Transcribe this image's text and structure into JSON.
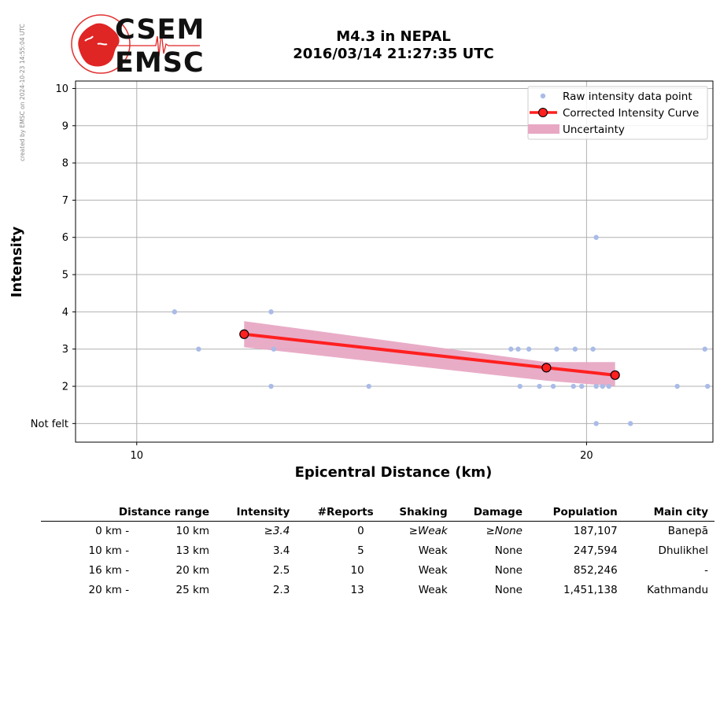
{
  "credit": "created by EMSC on 2024-10-23 14:55:04 UTC",
  "logo": {
    "line1": "CSEM",
    "line2": "EMSC"
  },
  "title": {
    "line1": "M4.3 in NEPAL",
    "line2": "2016/03/14 21:27:35 UTC"
  },
  "colors": {
    "raw": "#aabbe8",
    "curve": "#ff2020",
    "band": "#e8a8c4",
    "grid": "#b0b0b0"
  },
  "chart_data": {
    "type": "scatter",
    "xlabel": "Epicentral Distance (km)",
    "ylabel": "Intensity",
    "xlim": [
      9.1,
      24.3
    ],
    "ylim": [
      0.5,
      10.2
    ],
    "x_scale": "log",
    "grid": true,
    "x_ticks": [
      10,
      20
    ],
    "y_ticks": [
      {
        "value": 1,
        "label": "Not felt"
      },
      {
        "value": 2,
        "label": "2"
      },
      {
        "value": 3,
        "label": "3"
      },
      {
        "value": 4,
        "label": "4"
      },
      {
        "value": 5,
        "label": "5"
      },
      {
        "value": 6,
        "label": "6"
      },
      {
        "value": 7,
        "label": "7"
      },
      {
        "value": 8,
        "label": "8"
      },
      {
        "value": 9,
        "label": "9"
      },
      {
        "value": 10,
        "label": "10"
      }
    ],
    "legend_position": "top-right",
    "legend": [
      "Raw intensity data point",
      "Corrected Intensity Curve",
      "Uncertainty"
    ],
    "series": [
      {
        "name": "Raw intensity data point",
        "kind": "points",
        "points": [
          [
            10.6,
            4
          ],
          [
            11.0,
            3
          ],
          [
            12.3,
            4
          ],
          [
            12.35,
            3
          ],
          [
            12.3,
            2
          ],
          [
            14.3,
            2
          ],
          [
            17.8,
            3
          ],
          [
            18.0,
            3
          ],
          [
            18.05,
            2
          ],
          [
            18.3,
            3
          ],
          [
            18.6,
            2
          ],
          [
            19.0,
            2
          ],
          [
            19.1,
            3
          ],
          [
            19.6,
            2
          ],
          [
            19.65,
            3
          ],
          [
            19.85,
            2
          ],
          [
            20.2,
            3
          ],
          [
            20.3,
            2
          ],
          [
            20.3,
            6
          ],
          [
            20.3,
            1
          ],
          [
            20.5,
            2
          ],
          [
            20.7,
            2
          ],
          [
            21.4,
            1
          ],
          [
            23.0,
            2
          ],
          [
            24.0,
            3
          ],
          [
            24.1,
            2
          ]
        ]
      },
      {
        "name": "Corrected Intensity Curve",
        "kind": "line",
        "points": [
          [
            11.8,
            3.4
          ],
          [
            18.8,
            2.5
          ],
          [
            20.9,
            2.3
          ]
        ]
      },
      {
        "name": "Uncertainty",
        "kind": "band",
        "upper": [
          [
            11.8,
            3.75
          ],
          [
            18.8,
            2.65
          ],
          [
            20.9,
            2.65
          ]
        ],
        "lower": [
          [
            11.8,
            3.05
          ],
          [
            18.8,
            2.15
          ],
          [
            20.9,
            2.0
          ]
        ]
      }
    ]
  },
  "table": {
    "headers": [
      "Distance range",
      "Intensity",
      "#Reports",
      "Shaking",
      "Damage",
      "Population",
      "Main city"
    ],
    "rows": [
      {
        "range_from": "0 km -",
        "range_to": "10 km",
        "intensity": "≥3.4",
        "reports": "0",
        "shaking": "≥Weak",
        "damage": "≥None",
        "population": "187,107",
        "city": "Banepā"
      },
      {
        "range_from": "10 km -",
        "range_to": "13 km",
        "intensity": "3.4",
        "reports": "5",
        "shaking": "Weak",
        "damage": "None",
        "population": "247,594",
        "city": "Dhulikhel"
      },
      {
        "range_from": "16 km -",
        "range_to": "20 km",
        "intensity": "2.5",
        "reports": "10",
        "shaking": "Weak",
        "damage": "None",
        "population": "852,246",
        "city": "-"
      },
      {
        "range_from": "20 km -",
        "range_to": "25 km",
        "intensity": "2.3",
        "reports": "13",
        "shaking": "Weak",
        "damage": "None",
        "population": "1,451,138",
        "city": "Kathmandu"
      }
    ]
  }
}
